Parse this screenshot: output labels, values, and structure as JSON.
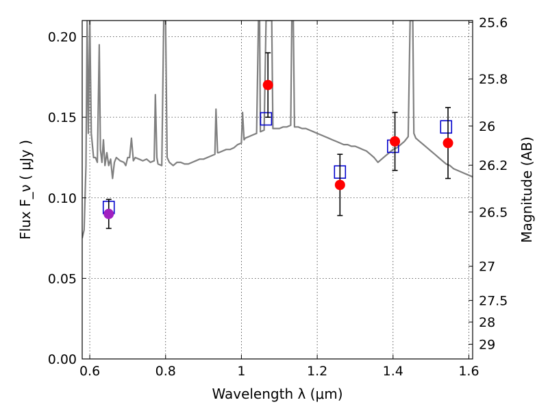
{
  "chart_data": {
    "type": "scatter",
    "xlabel": "Wavelength  λ (μm)",
    "ylabel": "Flux  F_ν  ( μJy )",
    "ylabel_right": "Magnitude (AB)",
    "xlim": [
      0.58,
      1.61
    ],
    "ylim": [
      0.0,
      0.21
    ],
    "x_ticks": [
      0.6,
      0.8,
      1.0,
      1.2,
      1.4,
      1.6
    ],
    "x_tick_labels": [
      "0.6",
      "0.8",
      "1",
      "1.2",
      "1.4",
      "1.6"
    ],
    "y_ticks": [
      0.0,
      0.05,
      0.1,
      0.15,
      0.2
    ],
    "y_tick_labels": [
      "0.00",
      "0.05",
      "0.10",
      "0.15",
      "0.20"
    ],
    "right_ticks": [
      {
        "label": "25.6",
        "mag": 25.6
      },
      {
        "label": "25.8",
        "mag": 25.8
      },
      {
        "label": "26",
        "mag": 26.0
      },
      {
        "label": "26.2",
        "mag": 26.2
      },
      {
        "label": "26.5",
        "mag": 26.5
      },
      {
        "label": "27",
        "mag": 27.0
      },
      {
        "label": "27.5",
        "mag": 27.5
      },
      {
        "label": "28",
        "mag": 28.0
      },
      {
        "label": "29",
        "mag": 29.0
      }
    ],
    "grid": true,
    "colors": {
      "spectrum": "#7f7f7f",
      "observed": "#ff0000",
      "observed_first": "#a020c0",
      "model": "#0000cc",
      "errorbar": "#000000"
    },
    "series": [
      {
        "kind": "model-spectrum",
        "points": [
          [
            0.58,
            0.075
          ],
          [
            0.585,
            0.08
          ],
          [
            0.59,
            0.12
          ],
          [
            0.593,
            0.21
          ],
          [
            0.596,
            0.14
          ],
          [
            0.6,
            0.21
          ],
          [
            0.604,
            0.14
          ],
          [
            0.61,
            0.125
          ],
          [
            0.615,
            0.125
          ],
          [
            0.62,
            0.122
          ],
          [
            0.625,
            0.195
          ],
          [
            0.628,
            0.13
          ],
          [
            0.632,
            0.122
          ],
          [
            0.636,
            0.136
          ],
          [
            0.64,
            0.12
          ],
          [
            0.645,
            0.128
          ],
          [
            0.65,
            0.12
          ],
          [
            0.655,
            0.124
          ],
          [
            0.66,
            0.112
          ],
          [
            0.665,
            0.122
          ],
          [
            0.67,
            0.125
          ],
          [
            0.675,
            0.124
          ],
          [
            0.68,
            0.123
          ],
          [
            0.69,
            0.122
          ],
          [
            0.695,
            0.12
          ],
          [
            0.7,
            0.125
          ],
          [
            0.705,
            0.125
          ],
          [
            0.71,
            0.137
          ],
          [
            0.715,
            0.123
          ],
          [
            0.72,
            0.125
          ],
          [
            0.73,
            0.124
          ],
          [
            0.74,
            0.123
          ],
          [
            0.75,
            0.124
          ],
          [
            0.76,
            0.122
          ],
          [
            0.77,
            0.123
          ],
          [
            0.773,
            0.164
          ],
          [
            0.777,
            0.125
          ],
          [
            0.78,
            0.121
          ],
          [
            0.79,
            0.12
          ],
          [
            0.795,
            0.21
          ],
          [
            0.8,
            0.21
          ],
          [
            0.804,
            0.125
          ],
          [
            0.81,
            0.122
          ],
          [
            0.82,
            0.12
          ],
          [
            0.83,
            0.122
          ],
          [
            0.84,
            0.122
          ],
          [
            0.85,
            0.121
          ],
          [
            0.86,
            0.121
          ],
          [
            0.87,
            0.122
          ],
          [
            0.88,
            0.123
          ],
          [
            0.89,
            0.124
          ],
          [
            0.9,
            0.124
          ],
          [
            0.91,
            0.125
          ],
          [
            0.92,
            0.126
          ],
          [
            0.93,
            0.127
          ],
          [
            0.933,
            0.155
          ],
          [
            0.937,
            0.128
          ],
          [
            0.94,
            0.128
          ],
          [
            0.95,
            0.129
          ],
          [
            0.96,
            0.13
          ],
          [
            0.97,
            0.13
          ],
          [
            0.98,
            0.131
          ],
          [
            0.99,
            0.133
          ],
          [
            1.0,
            0.134
          ],
          [
            1.003,
            0.153
          ],
          [
            1.007,
            0.136
          ],
          [
            1.01,
            0.137
          ],
          [
            1.02,
            0.138
          ],
          [
            1.03,
            0.139
          ],
          [
            1.04,
            0.14
          ],
          [
            1.045,
            0.21
          ],
          [
            1.048,
            0.21
          ],
          [
            1.05,
            0.141
          ],
          [
            1.06,
            0.142
          ],
          [
            1.065,
            0.21
          ],
          [
            1.08,
            0.21
          ],
          [
            1.083,
            0.143
          ],
          [
            1.09,
            0.143
          ],
          [
            1.1,
            0.143
          ],
          [
            1.11,
            0.144
          ],
          [
            1.12,
            0.144
          ],
          [
            1.13,
            0.145
          ],
          [
            1.133,
            0.21
          ],
          [
            1.137,
            0.21
          ],
          [
            1.14,
            0.144
          ],
          [
            1.15,
            0.144
          ],
          [
            1.16,
            0.143
          ],
          [
            1.17,
            0.143
          ],
          [
            1.18,
            0.142
          ],
          [
            1.19,
            0.141
          ],
          [
            1.2,
            0.14
          ],
          [
            1.21,
            0.139
          ],
          [
            1.22,
            0.138
          ],
          [
            1.23,
            0.137
          ],
          [
            1.24,
            0.136
          ],
          [
            1.25,
            0.135
          ],
          [
            1.26,
            0.134
          ],
          [
            1.27,
            0.133
          ],
          [
            1.28,
            0.133
          ],
          [
            1.29,
            0.132
          ],
          [
            1.3,
            0.132
          ],
          [
            1.31,
            0.131
          ],
          [
            1.32,
            0.13
          ],
          [
            1.33,
            0.129
          ],
          [
            1.34,
            0.127
          ],
          [
            1.35,
            0.125
          ],
          [
            1.36,
            0.122
          ],
          [
            1.37,
            0.124
          ],
          [
            1.38,
            0.126
          ],
          [
            1.39,
            0.128
          ],
          [
            1.4,
            0.13
          ],
          [
            1.41,
            0.131
          ],
          [
            1.42,
            0.133
          ],
          [
            1.43,
            0.135
          ],
          [
            1.44,
            0.138
          ],
          [
            1.445,
            0.21
          ],
          [
            1.452,
            0.21
          ],
          [
            1.455,
            0.14
          ],
          [
            1.46,
            0.137
          ],
          [
            1.47,
            0.135
          ],
          [
            1.48,
            0.133
          ],
          [
            1.49,
            0.131
          ],
          [
            1.5,
            0.129
          ],
          [
            1.51,
            0.127
          ],
          [
            1.52,
            0.125
          ],
          [
            1.53,
            0.123
          ],
          [
            1.54,
            0.121
          ],
          [
            1.55,
            0.12
          ],
          [
            1.56,
            0.118
          ],
          [
            1.57,
            0.117
          ],
          [
            1.58,
            0.116
          ],
          [
            1.59,
            0.115
          ],
          [
            1.6,
            0.114
          ],
          [
            1.61,
            0.113
          ]
        ]
      },
      {
        "kind": "observed",
        "points": [
          {
            "x": 0.65,
            "y": 0.09,
            "err": 0.009
          },
          {
            "x": 1.07,
            "y": 0.17,
            "err": 0.02
          },
          {
            "x": 1.26,
            "y": 0.108,
            "err": 0.019
          },
          {
            "x": 1.405,
            "y": 0.135,
            "err": 0.018
          },
          {
            "x": 1.545,
            "y": 0.134,
            "err": 0.022
          }
        ]
      },
      {
        "kind": "model-photometry",
        "points": [
          {
            "x": 0.65,
            "y": 0.094
          },
          {
            "x": 1.065,
            "y": 0.149
          },
          {
            "x": 1.26,
            "y": 0.116
          },
          {
            "x": 1.4,
            "y": 0.132
          },
          {
            "x": 1.54,
            "y": 0.144
          }
        ]
      }
    ]
  }
}
